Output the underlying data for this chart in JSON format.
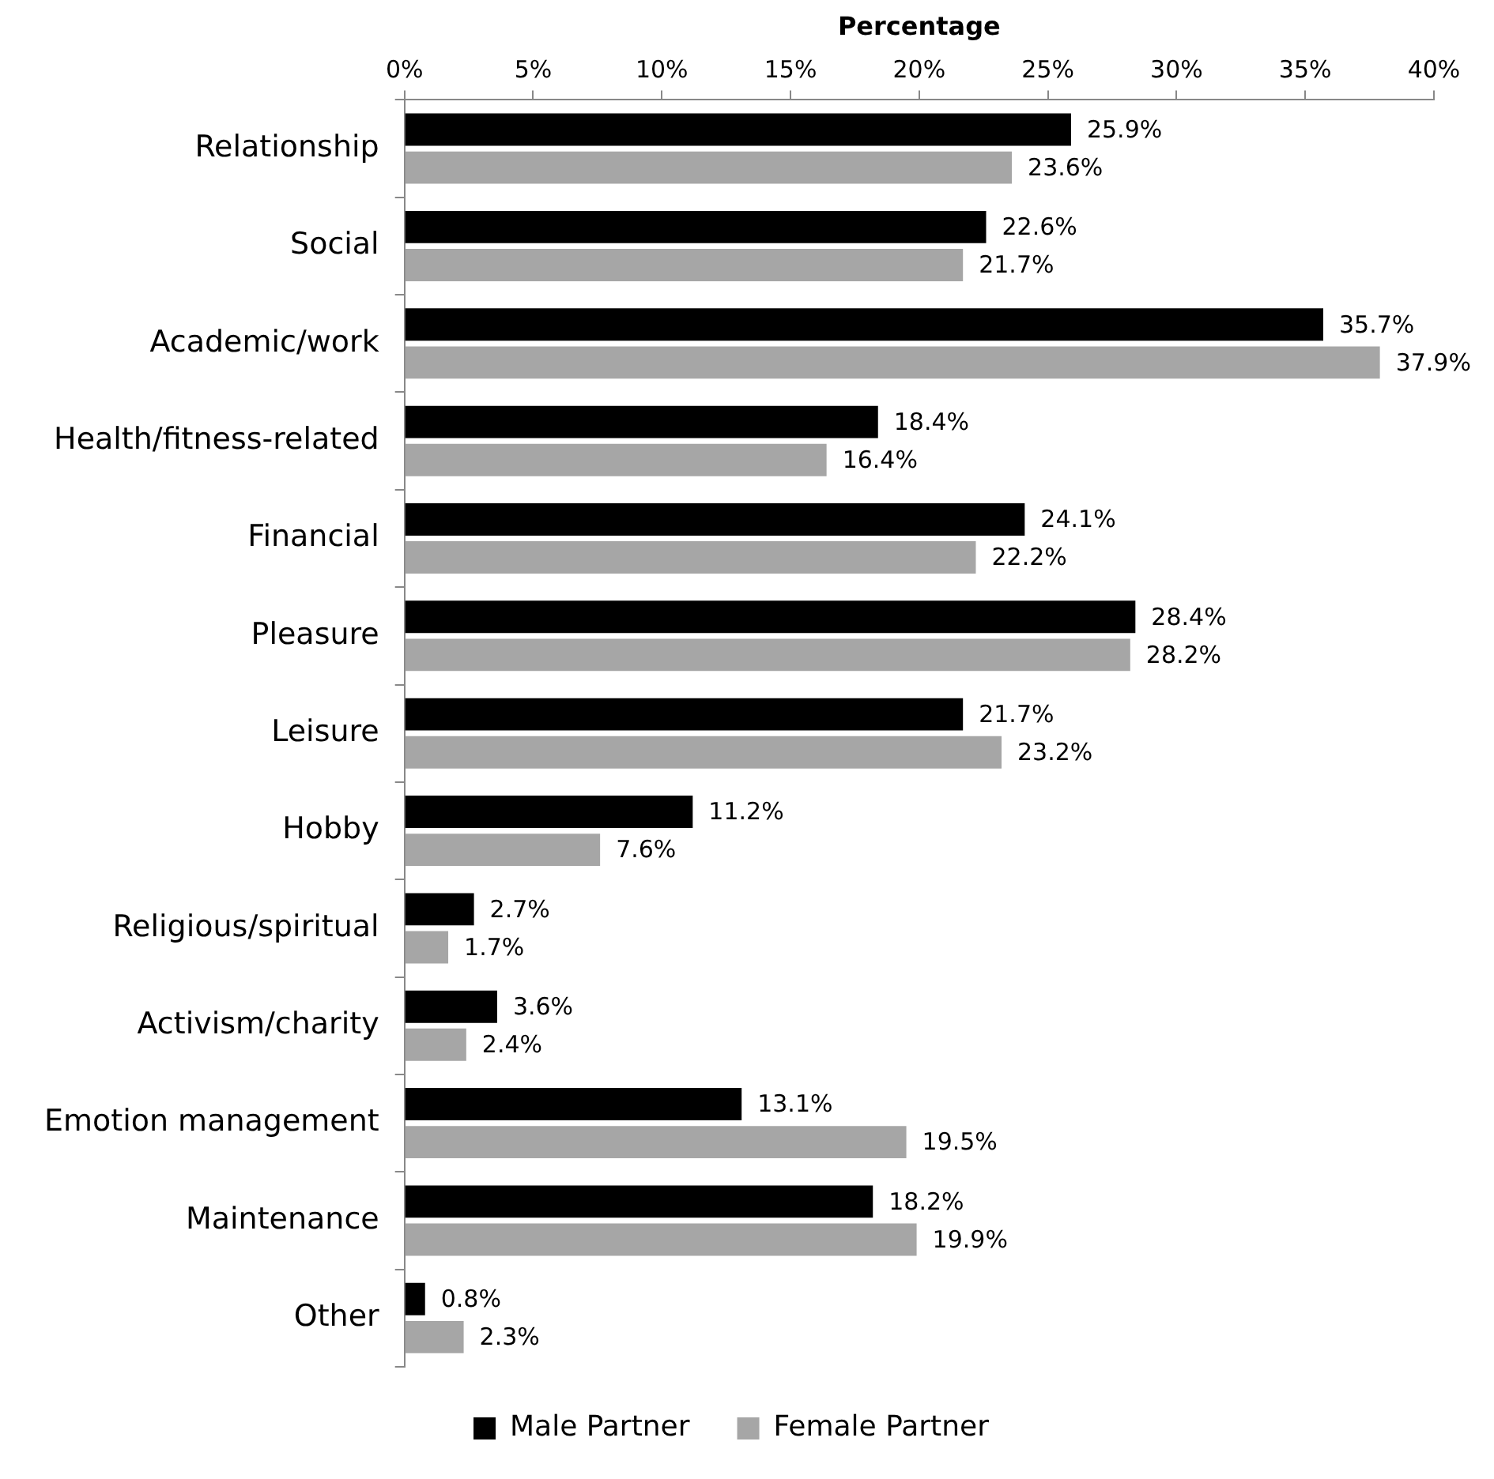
{
  "chart_data": {
    "type": "bar",
    "orientation": "horizontal",
    "xlabel": "Percentage",
    "categories": [
      "Relationship",
      "Social",
      "Academic/work",
      "Health/fitness-related",
      "Financial",
      "Pleasure",
      "Leisure",
      "Hobby",
      "Religious/spiritual",
      "Activism/charity",
      "Emotion management",
      "Maintenance",
      "Other"
    ],
    "series": [
      {
        "name": "Male Partner",
        "color": "#000000",
        "values": [
          25.9,
          22.6,
          35.7,
          18.4,
          24.1,
          28.4,
          21.7,
          11.2,
          2.7,
          3.6,
          13.1,
          18.2,
          0.8
        ],
        "value_labels": [
          "25.9%",
          "22.6%",
          "35.7%",
          "18.4%",
          "24.1%",
          "28.4%",
          "21.7%",
          "11.2%",
          "2.7%",
          "3.6%",
          "13.1%",
          "18.2%",
          "0.8%"
        ]
      },
      {
        "name": "Female Partner",
        "color": "#a6a6a6",
        "values": [
          23.6,
          21.7,
          37.9,
          16.4,
          22.2,
          28.2,
          23.2,
          7.6,
          1.7,
          2.4,
          19.5,
          19.9,
          2.3
        ],
        "value_labels": [
          "23.6%",
          "21.7%",
          "37.9%",
          "16.4%",
          "22.2%",
          "28.2%",
          "23.2%",
          "7.6%",
          "1.7%",
          "2.4%",
          "19.5%",
          "19.9%",
          "2.3%"
        ]
      }
    ],
    "xlim": [
      0,
      40
    ],
    "xticks": [
      {
        "value": 0,
        "label": "0%"
      },
      {
        "value": 5,
        "label": "5%"
      },
      {
        "value": 10,
        "label": "10%"
      },
      {
        "value": 15,
        "label": "15%"
      },
      {
        "value": 20,
        "label": "20%"
      },
      {
        "value": 25,
        "label": "25%"
      },
      {
        "value": 30,
        "label": "30%"
      },
      {
        "value": 35,
        "label": "35%"
      },
      {
        "value": 40,
        "label": "40%"
      }
    ],
    "legend": "bottom"
  }
}
